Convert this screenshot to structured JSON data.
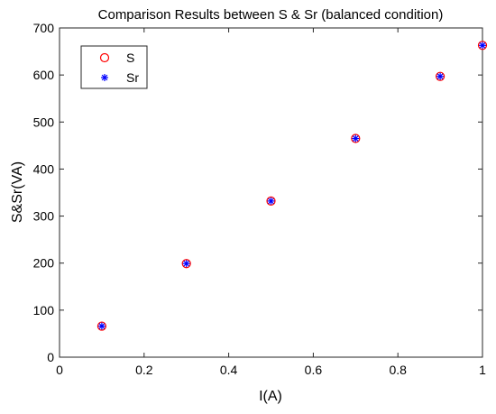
{
  "chart_data": {
    "type": "scatter",
    "title": "Comparison Results between S & Sr (balanced condition)",
    "xlabel": "I(A)",
    "ylabel": "S&Sr(VA)",
    "xlim": [
      0,
      1
    ],
    "ylim": [
      0,
      700
    ],
    "xticks": [
      "0",
      "0.2",
      "0.4",
      "0.6",
      "0.8",
      "1"
    ],
    "yticks": [
      "0",
      "100",
      "200",
      "300",
      "400",
      "500",
      "600",
      "700"
    ],
    "grid": false,
    "legend_position": "top-left",
    "x": [
      0.1,
      0.3,
      0.5,
      0.7,
      0.9,
      1.0
    ],
    "series": [
      {
        "name": "S",
        "marker": "circle",
        "color": "#ff0000",
        "values": [
          66,
          199,
          332,
          465,
          597,
          663
        ]
      },
      {
        "name": "Sr",
        "marker": "asterisk",
        "color": "#0000ff",
        "values": [
          66,
          199,
          332,
          465,
          597,
          663
        ]
      }
    ]
  }
}
